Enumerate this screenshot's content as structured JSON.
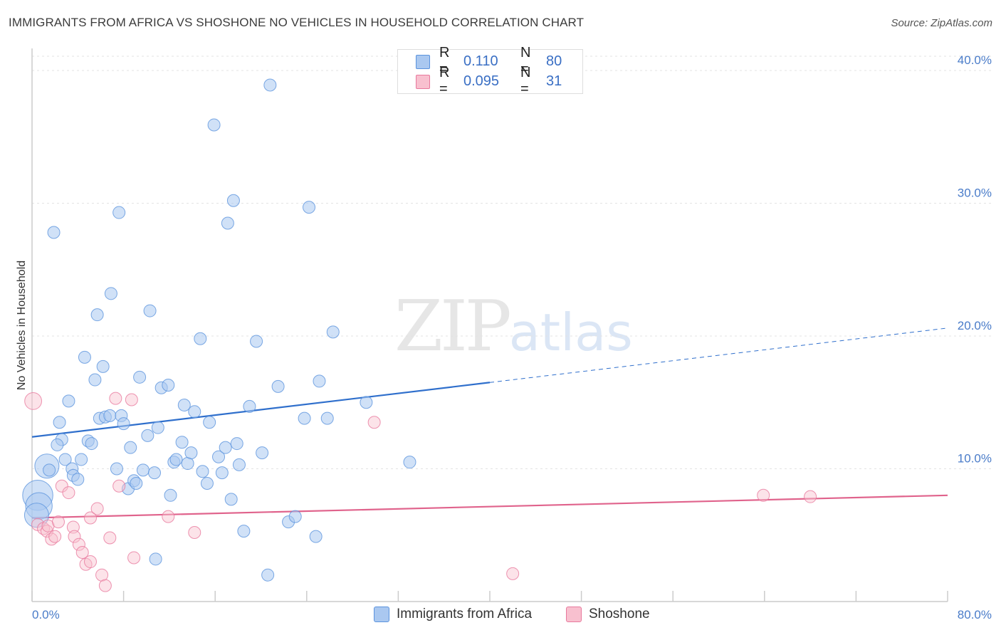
{
  "header": {
    "title": "IMMIGRANTS FROM AFRICA VS SHOSHONE NO VEHICLES IN HOUSEHOLD CORRELATION CHART",
    "source": "Source: ZipAtlas.com"
  },
  "watermark": {
    "zip": "ZIP",
    "atlas": "atlas"
  },
  "legend": {
    "rows": [
      {
        "r_label": "R =",
        "r_value": "0.110",
        "n_label": "N =",
        "n_value": "80",
        "color": "#aac8f0"
      },
      {
        "r_label": "R =",
        "r_value": "0.095",
        "n_label": "N =",
        "n_value": "31",
        "color": "#f8c0cf"
      }
    ]
  },
  "bottom_legend": {
    "items": [
      {
        "label": "Immigrants from Africa",
        "color": "#aac8f0"
      },
      {
        "label": "Shoshone",
        "color": "#f8c0cf"
      }
    ]
  },
  "chart_data": {
    "type": "scatter",
    "title": "IMMIGRANTS FROM AFRICA VS SHOSHONE NO VEHICLES IN HOUSEHOLD CORRELATION CHART",
    "xlabel": "",
    "ylabel": "No Vehicles in Household",
    "xlim": [
      0,
      80
    ],
    "ylim": [
      0,
      40
    ],
    "x_tick_labels": [
      "0.0%",
      "80.0%"
    ],
    "y_tick_labels": [
      "10.0%",
      "20.0%",
      "30.0%",
      "40.0%"
    ],
    "y_ticks": [
      10,
      20,
      30,
      40
    ],
    "grid": true,
    "legend_position": "top-center",
    "series": [
      {
        "name": "Immigrants from Africa",
        "color": "#5b93dd",
        "fill": "#aac8f0",
        "trend": {
          "x": [
            0,
            40
          ],
          "y": [
            12.4,
            16.5
          ],
          "dashed_to": [
            80,
            20.6
          ]
        },
        "points": [
          [
            1.3,
            10.2,
            2
          ],
          [
            1.5,
            9.9,
            1
          ],
          [
            0.5,
            8.0,
            2.5
          ],
          [
            0.6,
            7.2,
            2.2
          ],
          [
            0.4,
            6.5,
            2
          ],
          [
            1.9,
            27.8,
            1
          ],
          [
            2.4,
            13.5,
            1
          ],
          [
            2.6,
            12.2,
            1
          ],
          [
            2.9,
            10.7,
            1
          ],
          [
            2.2,
            11.8,
            1
          ],
          [
            3.2,
            15.1,
            1
          ],
          [
            3.5,
            10.0,
            1
          ],
          [
            3.6,
            9.5,
            1
          ],
          [
            4.0,
            9.2,
            1
          ],
          [
            4.3,
            10.7,
            1
          ],
          [
            4.6,
            18.4,
            1
          ],
          [
            4.9,
            12.1,
            1
          ],
          [
            5.2,
            11.9,
            1
          ],
          [
            5.5,
            16.7,
            1
          ],
          [
            5.7,
            21.6,
            1
          ],
          [
            5.9,
            13.8,
            1
          ],
          [
            6.2,
            17.7,
            1
          ],
          [
            6.4,
            13.9,
            1
          ],
          [
            6.8,
            14.0,
            1
          ],
          [
            6.9,
            23.2,
            1
          ],
          [
            7.4,
            10.0,
            1
          ],
          [
            7.6,
            29.3,
            1
          ],
          [
            7.8,
            14.0,
            1
          ],
          [
            8.0,
            13.4,
            1
          ],
          [
            8.4,
            8.5,
            1
          ],
          [
            8.6,
            11.6,
            1
          ],
          [
            8.9,
            9.1,
            1
          ],
          [
            9.1,
            8.9,
            1
          ],
          [
            9.4,
            16.9,
            1
          ],
          [
            9.7,
            9.9,
            1
          ],
          [
            10.1,
            12.5,
            1
          ],
          [
            10.3,
            21.9,
            1
          ],
          [
            10.7,
            9.7,
            1
          ],
          [
            11.0,
            13.1,
            1
          ],
          [
            11.3,
            16.1,
            1
          ],
          [
            11.9,
            16.3,
            1
          ],
          [
            12.1,
            8.0,
            1
          ],
          [
            12.4,
            10.5,
            1
          ],
          [
            12.6,
            10.7,
            1
          ],
          [
            13.1,
            12.0,
            1
          ],
          [
            13.3,
            14.8,
            1
          ],
          [
            13.6,
            10.4,
            1
          ],
          [
            13.9,
            11.2,
            1
          ],
          [
            14.2,
            14.3,
            1
          ],
          [
            14.7,
            19.8,
            1
          ],
          [
            14.9,
            9.8,
            1
          ],
          [
            15.3,
            8.9,
            1
          ],
          [
            15.5,
            13.5,
            1
          ],
          [
            15.9,
            35.9,
            1
          ],
          [
            16.3,
            10.9,
            1
          ],
          [
            16.6,
            9.7,
            1
          ],
          [
            16.9,
            11.6,
            1
          ],
          [
            17.1,
            28.5,
            1
          ],
          [
            17.4,
            7.7,
            1
          ],
          [
            17.6,
            30.2,
            1
          ],
          [
            17.9,
            11.9,
            1
          ],
          [
            18.1,
            10.3,
            1
          ],
          [
            18.5,
            5.3,
            1
          ],
          [
            19.0,
            14.7,
            1
          ],
          [
            19.6,
            19.6,
            1
          ],
          [
            20.1,
            11.2,
            1
          ],
          [
            20.6,
            2.0,
            1
          ],
          [
            20.8,
            38.9,
            1
          ],
          [
            21.5,
            16.2,
            1
          ],
          [
            22.4,
            6.0,
            1
          ],
          [
            23.0,
            6.4,
            1
          ],
          [
            23.8,
            13.8,
            1
          ],
          [
            24.2,
            29.7,
            1
          ],
          [
            24.8,
            4.9,
            1
          ],
          [
            25.1,
            16.6,
            1
          ],
          [
            25.8,
            13.8,
            1
          ],
          [
            26.3,
            20.3,
            1
          ],
          [
            29.2,
            15.0,
            1
          ],
          [
            33.0,
            10.5,
            1
          ],
          [
            10.8,
            3.2,
            1
          ]
        ]
      },
      {
        "name": "Shoshone",
        "color": "#e8799d",
        "fill": "#f8c0cf",
        "trend": {
          "x": [
            0,
            80
          ],
          "y": [
            6.3,
            8.0
          ]
        },
        "points": [
          [
            0.1,
            15.1,
            1.4
          ],
          [
            0.5,
            5.8,
            1
          ],
          [
            1.0,
            5.5,
            1
          ],
          [
            1.3,
            5.3,
            1
          ],
          [
            1.4,
            5.7,
            1
          ],
          [
            1.7,
            4.7,
            1
          ],
          [
            2.0,
            4.9,
            1
          ],
          [
            2.3,
            6.0,
            1
          ],
          [
            2.6,
            8.7,
            1
          ],
          [
            3.2,
            8.2,
            1
          ],
          [
            3.6,
            5.6,
            1
          ],
          [
            3.7,
            4.9,
            1
          ],
          [
            4.1,
            4.3,
            1
          ],
          [
            4.4,
            3.7,
            1
          ],
          [
            4.7,
            2.8,
            1
          ],
          [
            5.1,
            3.0,
            1
          ],
          [
            5.1,
            6.3,
            1
          ],
          [
            5.7,
            7.0,
            1
          ],
          [
            6.1,
            2.0,
            1
          ],
          [
            6.4,
            1.2,
            1
          ],
          [
            6.8,
            4.8,
            1
          ],
          [
            7.3,
            15.3,
            1
          ],
          [
            7.6,
            8.7,
            1
          ],
          [
            8.7,
            15.2,
            1
          ],
          [
            8.9,
            3.3,
            1
          ],
          [
            11.9,
            6.4,
            1
          ],
          [
            14.2,
            5.2,
            1
          ],
          [
            29.9,
            13.5,
            1
          ],
          [
            42.0,
            2.1,
            1
          ],
          [
            63.9,
            8.0,
            1
          ],
          [
            68.0,
            7.9,
            1
          ]
        ]
      }
    ]
  }
}
